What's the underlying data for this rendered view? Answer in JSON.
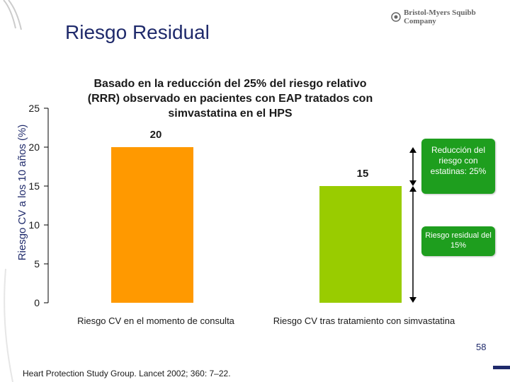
{
  "header": {
    "title": "Riesgo Residual",
    "logo_text": "Bristol-Myers Squibb Company"
  },
  "colors": {
    "bar_1": "#ff9900",
    "bar_2": "#99cc00",
    "note_bg": "#1e9e1e",
    "title": "#1f2a6b"
  },
  "notes": {
    "reduction": "Reducción del riesgo con estatinas: 25%",
    "residual": "Riesgo residual del 15%"
  },
  "footer": {
    "citation": "Heart Protection Study Group. Lancet 2002; 360: 7–22.",
    "page_number": "58"
  },
  "chart_data": {
    "type": "bar",
    "title": "Basado en la reducción del 25% del riesgo relativo (RRR) observado en pacientes con EAP tratados con simvastatina en el HPS",
    "ylabel": "Riesgo CV a los 10 años (%)",
    "xlabel": "",
    "categories": [
      "Riesgo CV en el momento de consulta",
      "Riesgo CV tras tratamiento con simvastatina"
    ],
    "values": [
      20,
      15
    ],
    "data_labels": [
      "20",
      "15"
    ],
    "ylim": [
      0,
      25
    ],
    "yticks": [
      0,
      5,
      10,
      15,
      20,
      25
    ],
    "grid": false
  }
}
